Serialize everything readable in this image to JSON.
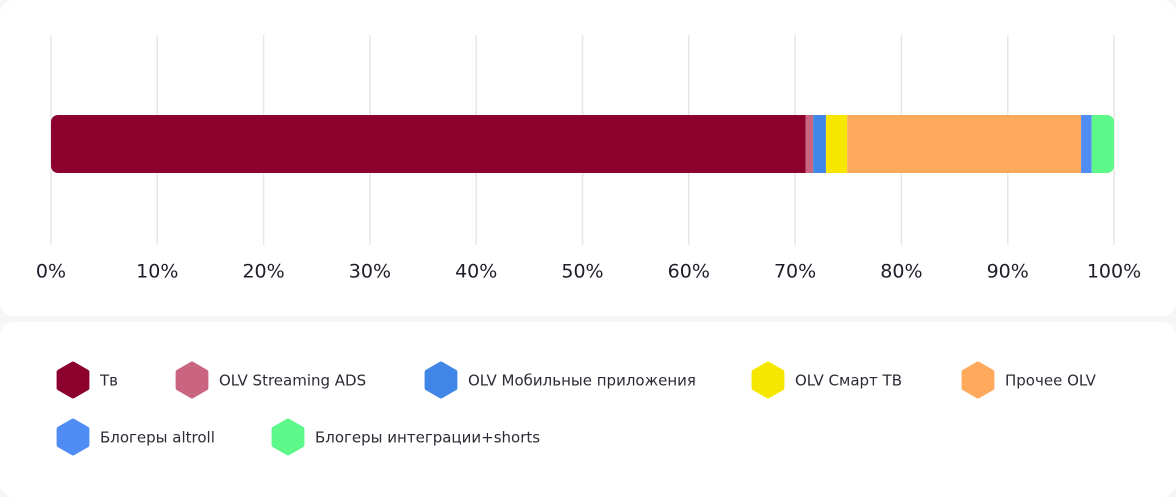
{
  "chart_data": {
    "type": "bar",
    "orientation": "horizontal",
    "stacked": true,
    "xlim": [
      0,
      100
    ],
    "xticks": [
      {
        "value": 0,
        "label": "0%"
      },
      {
        "value": 10,
        "label": "10%"
      },
      {
        "value": 20,
        "label": "20%"
      },
      {
        "value": 30,
        "label": "30%"
      },
      {
        "value": 40,
        "label": "40%"
      },
      {
        "value": 50,
        "label": "50%"
      },
      {
        "value": 60,
        "label": "60%"
      },
      {
        "value": 70,
        "label": "70%"
      },
      {
        "value": 80,
        "label": "80%"
      },
      {
        "value": 90,
        "label": "90%"
      },
      {
        "value": 100,
        "label": "100%"
      }
    ],
    "grid": true,
    "series": [
      {
        "name": "Тв",
        "color": "#8b002c",
        "values": [
          71
        ]
      },
      {
        "name": "OLV Streaming ADS",
        "color": "#c96580",
        "values": [
          0.7
        ]
      },
      {
        "name": "OLV Мобильные приложения",
        "color": "#3f86e6",
        "values": [
          1.2
        ]
      },
      {
        "name": "OLV Смарт ТВ",
        "color": "#f7e600",
        "values": [
          2
        ]
      },
      {
        "name": "Прочее OLV",
        "color": "#ffa95c",
        "values": [
          22
        ]
      },
      {
        "name": "Блогеры altroll",
        "color": "#4f8df5",
        "values": [
          1
        ]
      },
      {
        "name": "Блогеры интеграции+shorts",
        "color": "#5cf98a",
        "values": [
          2.1
        ]
      }
    ]
  }
}
